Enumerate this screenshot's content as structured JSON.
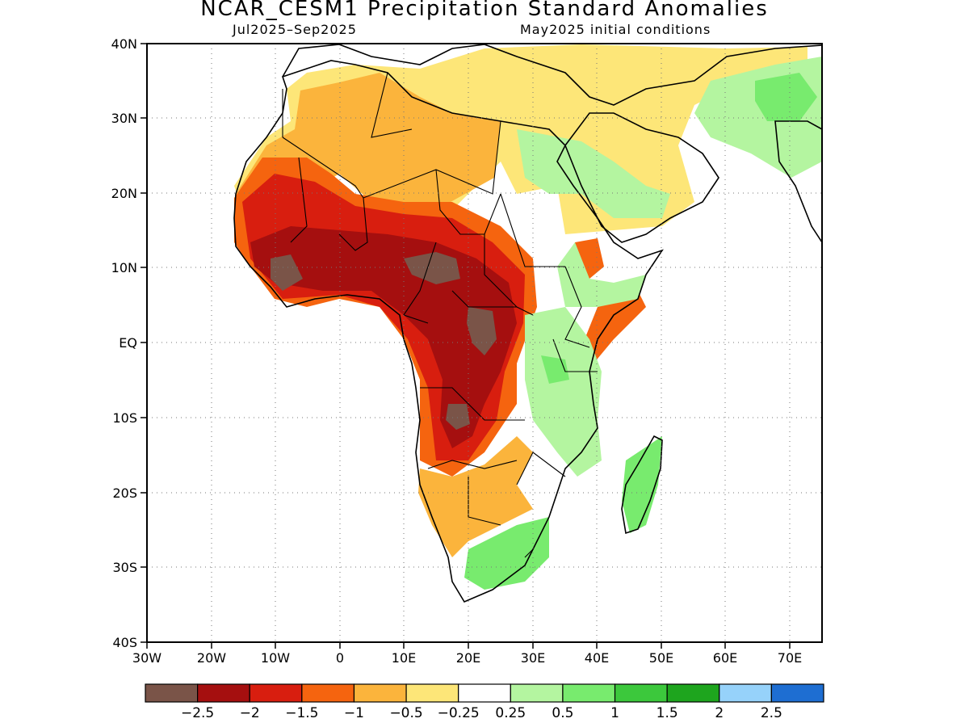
{
  "title": "NCAR_CESM1 Precipitation Standard Anomalies",
  "subtitle_left": "Jul2025–Sep2025",
  "subtitle_right": "May2025 initial conditions",
  "axes": {
    "x_ticks": [
      "30W",
      "20W",
      "10W",
      "0",
      "10E",
      "20E",
      "30E",
      "40E",
      "50E",
      "60E",
      "70E"
    ],
    "y_ticks": [
      "40N",
      "30N",
      "20N",
      "10N",
      "EQ",
      "10S",
      "20S",
      "30S",
      "40S"
    ],
    "lon_range": [
      -30,
      75
    ],
    "lat_range": [
      -40,
      40
    ],
    "grid": "dotted"
  },
  "colorbar": {
    "colors": [
      "#7a5448",
      "#a50f0f",
      "#d81e0f",
      "#f5640f",
      "#fbb43c",
      "#fde678",
      "#ffffff",
      "#b4f5a0",
      "#78eb6e",
      "#3cc83c",
      "#1ea51e",
      "#96d2fa",
      "#1e6ed2"
    ],
    "labels": [
      "−2.5",
      "−2",
      "−1.5",
      "−1",
      "−0.5",
      "−0.25",
      "0.25",
      "0.5",
      "1",
      "1.5",
      "2",
      "2.5"
    ]
  },
  "legend_colors": {
    "extreme_dry": "#7a5448",
    "very_dry": "#a50f0f",
    "dry_1_5": "#d81e0f",
    "dry_1": "#f5640f",
    "dry_0_5": "#fbb43c",
    "dry_0_25": "#fde678",
    "neutral": "#ffffff",
    "wet_0_25": "#b4f5a0",
    "wet_0_5": "#78eb6e",
    "wet_1": "#3cc83c",
    "wet_1_5": "#1ea51e"
  }
}
